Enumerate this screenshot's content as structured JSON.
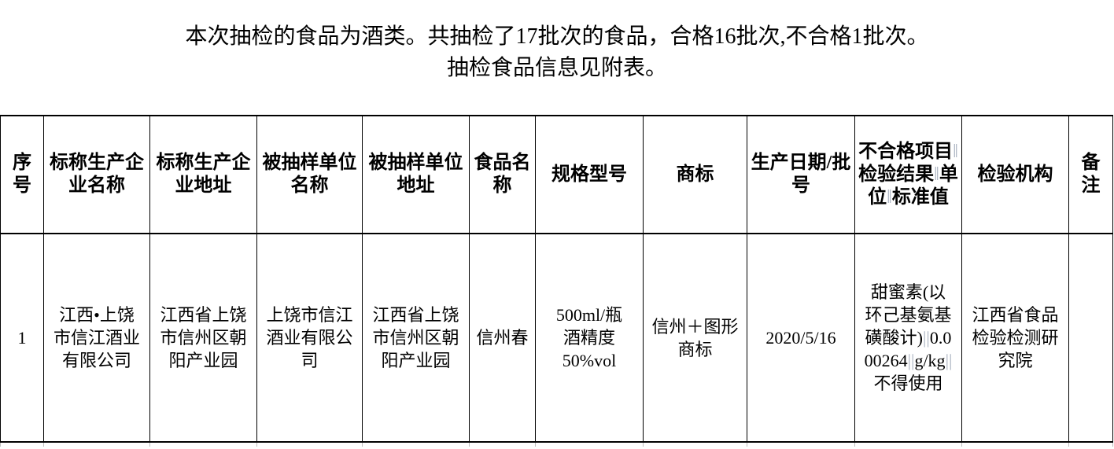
{
  "intro": {
    "line1": "本次抽检的食品为酒类。共抽检了17批次的食品，合格16批次,不合格1批次。",
    "line2": "抽检食品信息见附表。"
  },
  "table": {
    "headers": [
      "序号",
      "标称生产企业名称",
      "标称生产企业地址",
      "被抽样单位名称",
      "被抽样单位地址",
      "食品名称",
      "规格型号",
      "商标",
      "生产日期/批号",
      "不合格项目‖检验结果‖单位‖标准值",
      "检验机构",
      "备注"
    ],
    "rows": [
      {
        "seq": "1",
        "producer_name": "江西•上饶市信江酒业有限公司",
        "producer_address": "江西省上饶市信州区朝阳产业园",
        "sampled_unit_name": "上饶市信江酒业有限公司",
        "sampled_unit_address": "江西省上饶市信州区朝阳产业园",
        "food_name": "信州春",
        "spec": "500ml/瓶\n酒精度\n50%vol",
        "trademark": "信州＋图形商标",
        "production_date": "2020/5/16",
        "failed_item": "甜蜜素(以环己基氨基磺酸计)||0.000264||g/kg||不得使用",
        "inspection_agency": "江西省食品检验检测研究院",
        "remark": ""
      }
    ]
  },
  "colors": {
    "text": "#000000",
    "border": "#000000",
    "background": "#ffffff",
    "pipe_separator": "#a9b2c0"
  }
}
